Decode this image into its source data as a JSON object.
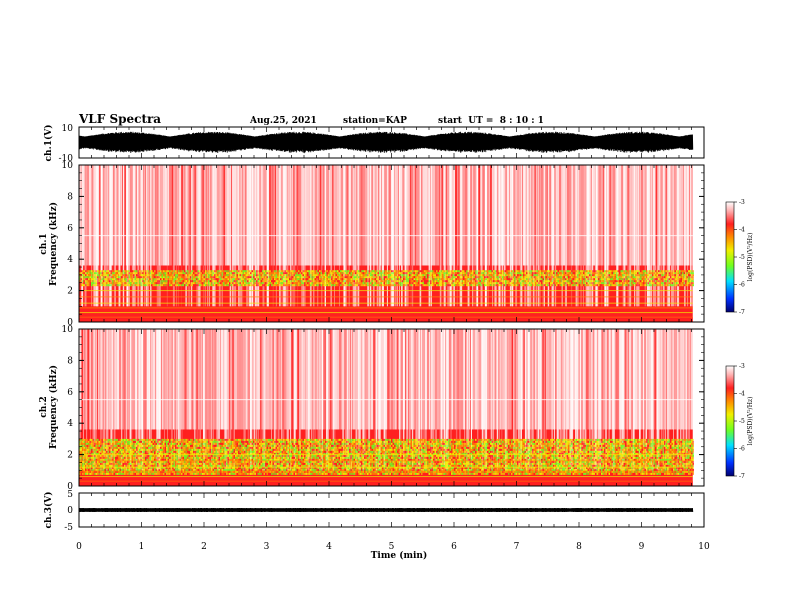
{
  "header": {
    "title": "VLF Spectra",
    "date": "Aug.25, 2021",
    "station": "station=KAP",
    "start_ut": "start  UT =  8 : 10 : 1"
  },
  "chart_data": [
    {
      "type": "line",
      "name": "ch.1 waveform",
      "ylabel": "ch.1(V)",
      "ylim": [
        -10,
        10
      ],
      "yticks": [
        "10",
        "-10"
      ],
      "xlim": [
        0,
        10
      ],
      "data_extent_min": 9.82,
      "signal_band": [
        -7,
        7
      ]
    },
    {
      "type": "heatmap",
      "name": "ch.1 spectrogram",
      "ylabel_lines": [
        "ch.1",
        "Frequency (kHz)"
      ],
      "ylim": [
        0,
        10
      ],
      "yticks": [
        0,
        2,
        4,
        6,
        8,
        10
      ],
      "xlim": [
        0,
        10
      ],
      "data_extent_min": 9.82,
      "green_band_khz": [
        2.3,
        3.3
      ],
      "colorbar": {
        "label": "log(PSD)(V²/Hz)",
        "range": [
          -7,
          -3
        ],
        "ticks": [
          "-3",
          "-4",
          "-5",
          "-6",
          "-7"
        ]
      }
    },
    {
      "type": "heatmap",
      "name": "ch.2 spectrogram",
      "ylabel_lines": [
        "ch.2",
        "Frequency (kHz)"
      ],
      "ylim": [
        0,
        10
      ],
      "yticks": [
        0,
        2,
        4,
        6,
        8,
        10
      ],
      "xlim": [
        0,
        10
      ],
      "data_extent_min": 9.82,
      "green_band_khz": [
        0.8,
        3.0
      ],
      "colorbar": {
        "label": "log(PSD)(V²/Hz)",
        "range": [
          -7,
          -3
        ],
        "ticks": [
          "-3",
          "-4",
          "-5",
          "-6",
          "-7"
        ]
      }
    },
    {
      "type": "line",
      "name": "ch.3 waveform",
      "ylabel": "ch.3(V)",
      "ylim": [
        -5,
        5
      ],
      "yticks": [
        "5",
        "0",
        "-5"
      ],
      "xlim": [
        0,
        10
      ],
      "data_extent_min": 9.82,
      "signal_level": 0,
      "signal_band": [
        -0.6,
        0.6
      ]
    }
  ],
  "x_axis": {
    "label": "Time (min)",
    "ticks": [
      "0",
      "1",
      "2",
      "3",
      "4",
      "5",
      "6",
      "7",
      "8",
      "9",
      "10"
    ]
  },
  "colors": {
    "white": "#ffffff",
    "pale_red": "#ff9090",
    "red": "#ff2020",
    "orange": "#ff8c00",
    "yellow": "#f0f000",
    "green": "#70ff20",
    "cyan": "#00e0ff",
    "blue": "#0030ff",
    "navy": "#000070",
    "line": "#000000"
  }
}
